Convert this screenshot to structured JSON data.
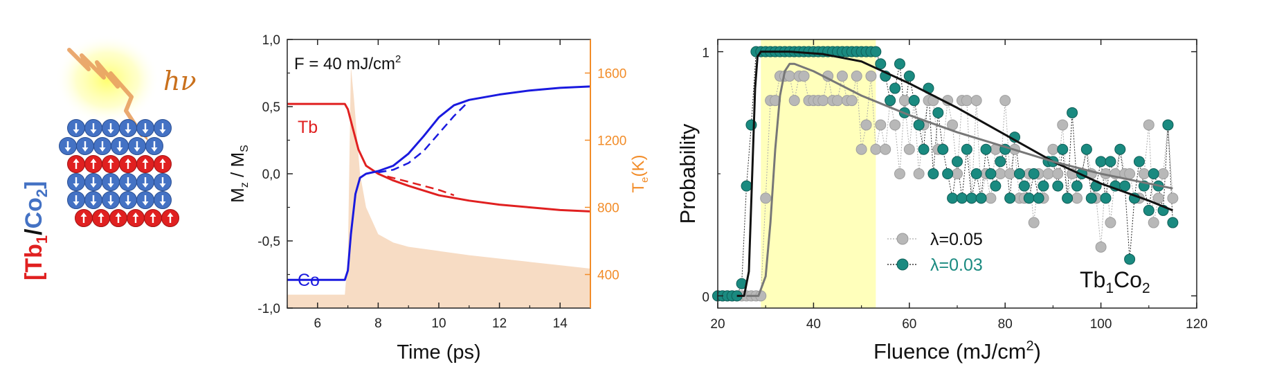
{
  "schematic": {
    "hv_label": "hν",
    "stack_label_tb": "Tb",
    "stack_label_tb_sub": "1",
    "stack_label_sep": "/",
    "stack_label_co": "Co",
    "stack_label_co_sub": "2",
    "open_bracket": "[",
    "close_bracket": "]",
    "layers": [
      {
        "element": "Co",
        "spin": "down",
        "count": 6
      },
      {
        "element": "Co",
        "spin": "down",
        "count": 6
      },
      {
        "element": "Tb",
        "spin": "up",
        "count": 6
      },
      {
        "element": "Co",
        "spin": "down",
        "count": 6
      },
      {
        "element": "Co",
        "spin": "down",
        "count": 6
      },
      {
        "element": "Tb",
        "spin": "up",
        "count": 6
      }
    ],
    "colors": {
      "co": "#4472c4",
      "tb": "#e02020",
      "arrow_beam": "#e8a060",
      "glow": "#ffff99"
    }
  },
  "chart_data": [
    {
      "type": "line",
      "annotation_main": "F = 40 mJ/cm",
      "annotation_sup": "2",
      "xlabel": "Time (ps)",
      "ylabel_main": "M",
      "ylabel_sub1": "z",
      "ylabel_mid": " / M",
      "ylabel_sub2": "S",
      "y2label_main": "T",
      "y2label_sub": "e",
      "y2label_end": "(K)",
      "xlim": [
        5,
        15
      ],
      "ylim": [
        -1.0,
        1.0
      ],
      "y2lim": [
        200,
        1800
      ],
      "xticks": [
        "6",
        "8",
        "10",
        "12",
        "14"
      ],
      "yticks": [
        "1,0",
        "0,5",
        "0,0",
        "-0,5",
        "-1,0"
      ],
      "y2ticks": [
        "400",
        "800",
        "1200",
        "1600"
      ],
      "series": [
        {
          "name": "Tb",
          "color": "#e02020",
          "style": "solid",
          "x": [
            5.0,
            6.9,
            7.0,
            7.15,
            7.35,
            7.6,
            8.0,
            8.5,
            9.0,
            10.0,
            11.0,
            12.0,
            13.0,
            14.0,
            15.0
          ],
          "y": [
            0.52,
            0.52,
            0.48,
            0.35,
            0.18,
            0.06,
            0.0,
            -0.05,
            -0.09,
            -0.16,
            -0.2,
            -0.23,
            -0.25,
            -0.27,
            -0.28
          ]
        },
        {
          "name": "",
          "color": "#e02020",
          "style": "dashed",
          "x": [
            8.3,
            9.0,
            9.5,
            10.0,
            10.5
          ],
          "y": [
            -0.02,
            -0.06,
            -0.09,
            -0.12,
            -0.16
          ]
        },
        {
          "name": "Co",
          "color": "#1a1adf",
          "style": "solid",
          "x": [
            5.0,
            6.9,
            7.0,
            7.1,
            7.25,
            7.4,
            7.6,
            8.0,
            8.5,
            9.0,
            9.5,
            10.0,
            10.5,
            11.0,
            12.0,
            13.0,
            14.0,
            15.0
          ],
          "y": [
            -0.79,
            -0.79,
            -0.72,
            -0.45,
            -0.15,
            -0.03,
            0.0,
            0.02,
            0.06,
            0.15,
            0.28,
            0.42,
            0.51,
            0.55,
            0.59,
            0.62,
            0.64,
            0.65
          ]
        },
        {
          "name": "",
          "color": "#1a1adf",
          "style": "dashed",
          "x": [
            8.0,
            8.5,
            9.0,
            9.5,
            10.0,
            10.5,
            10.9
          ],
          "y": [
            0.01,
            0.03,
            0.08,
            0.17,
            0.3,
            0.43,
            0.52
          ]
        },
        {
          "name": "",
          "color": "#f7dcc4",
          "style": "fill",
          "axis": "y2",
          "x": [
            5.0,
            6.9,
            7.0,
            7.1,
            7.2,
            7.4,
            7.6,
            8.0,
            8.5,
            9.0,
            10.0,
            11.0,
            12.0,
            13.0,
            14.0,
            15.0
          ],
          "y": [
            280,
            280,
            500,
            1640,
            1450,
            1000,
            800,
            640,
            590,
            565,
            540,
            515,
            495,
            475,
            455,
            435
          ]
        }
      ],
      "labels": [
        "Tb",
        "Co"
      ]
    },
    {
      "type": "scatter",
      "xlabel_main": "Fluence (mJ/cm",
      "xlabel_sup": "2",
      "xlabel_end": ")",
      "ylabel": "Probability",
      "xlim": [
        20,
        120
      ],
      "ylim": [
        -0.05,
        1.05
      ],
      "xticks": [
        "20",
        "40",
        "60",
        "80",
        "100",
        "120"
      ],
      "yticks": [
        "0",
        "1"
      ],
      "highlight_band": {
        "x": [
          29,
          53
        ],
        "color": "#ffffaa"
      },
      "label": "Tb",
      "label_sub": "1",
      "label_mid": "Co",
      "label_sub2": "2",
      "series": [
        {
          "name": "λ=0.05",
          "color": "#b8b8b8",
          "marker": "circle",
          "x": [
            20,
            21,
            22,
            23,
            24,
            25,
            26,
            27,
            28,
            29,
            30,
            31,
            32,
            33,
            34,
            35,
            36,
            37,
            38,
            39,
            40,
            41,
            42,
            43,
            44,
            45,
            46,
            47,
            48,
            49,
            50,
            51,
            52,
            53,
            54,
            55,
            56,
            57,
            58,
            59,
            60,
            61,
            62,
            63,
            64,
            65,
            66,
            67,
            68,
            69,
            70,
            71,
            72,
            73,
            74,
            75,
            76,
            77,
            78,
            79,
            80,
            81,
            82,
            83,
            84,
            85,
            86,
            87,
            88,
            89,
            90,
            91,
            92,
            93,
            94,
            95,
            96,
            97,
            98,
            99,
            100,
            101,
            102,
            103,
            104,
            105,
            106,
            107,
            108,
            109,
            110,
            111,
            112,
            113,
            114,
            115
          ],
          "y": [
            0,
            0,
            0,
            0,
            0,
            0,
            0,
            0,
            0,
            0,
            0.4,
            0.8,
            0.8,
            0.9,
            0.9,
            0.9,
            0.8,
            0.9,
            0.9,
            0.8,
            0.8,
            0.8,
            0.8,
            0.9,
            0.8,
            0.8,
            0.9,
            0.8,
            0.8,
            0.9,
            0.6,
            0.7,
            0.9,
            0.6,
            0.7,
            0.6,
            0.8,
            0.7,
            0.5,
            0.8,
            0.6,
            0.8,
            0.5,
            0.7,
            0.8,
            0.8,
            0.6,
            0.6,
            0.8,
            0.7,
            0.5,
            0.8,
            0.8,
            0.4,
            0.8,
            0.4,
            0.5,
            0.4,
            0.6,
            0.5,
            0.8,
            0.5,
            0.6,
            0.4,
            0.4,
            0.5,
            0.3,
            0.5,
            0.4,
            0.5,
            0.6,
            0.5,
            0.7,
            0.4,
            0.5,
            0.4,
            0.5,
            0.6,
            0.5,
            0.4,
            0.2,
            0.5,
            0.3,
            0.5,
            0.6,
            0.5,
            0.5,
            0.4,
            0.4,
            0.5,
            0.7,
            0.3,
            0.4,
            0.5,
            0.7,
            0.4
          ]
        },
        {
          "name": "λ=0.03",
          "color": "#1a8a80",
          "marker": "circle",
          "x": [
            20,
            21,
            22,
            23,
            24,
            25,
            26,
            27,
            28,
            29,
            30,
            31,
            32,
            33,
            34,
            35,
            36,
            37,
            38,
            39,
            40,
            41,
            42,
            43,
            44,
            45,
            46,
            47,
            48,
            49,
            50,
            51,
            52,
            53,
            54,
            55,
            56,
            57,
            58,
            59,
            60,
            61,
            62,
            63,
            64,
            65,
            66,
            67,
            68,
            69,
            70,
            71,
            72,
            73,
            74,
            75,
            76,
            77,
            78,
            79,
            80,
            81,
            82,
            83,
            84,
            85,
            86,
            87,
            88,
            89,
            90,
            91,
            92,
            93,
            94,
            95,
            96,
            97,
            98,
            99,
            100,
            101,
            102,
            103,
            104,
            105,
            106,
            107,
            108,
            109,
            110,
            111,
            112,
            113,
            114,
            115
          ],
          "y": [
            0,
            0,
            0,
            0,
            0,
            0.05,
            0.45,
            0.7,
            1.0,
            1.0,
            1.0,
            1.0,
            1.0,
            1.0,
            1.0,
            1.0,
            1.0,
            1.0,
            1.0,
            1.0,
            1.0,
            1.0,
            1.0,
            1.0,
            1.0,
            1.0,
            1.0,
            1.0,
            1.0,
            1.0,
            1.0,
            1.0,
            1.0,
            1.0,
            0.95,
            0.9,
            0.8,
            0.85,
            0.95,
            0.75,
            0.9,
            0.8,
            0.7,
            0.6,
            0.85,
            0.5,
            0.75,
            0.6,
            0.5,
            0.4,
            0.55,
            0.4,
            0.6,
            0.4,
            0.5,
            0.4,
            0.6,
            0.5,
            0.45,
            0.55,
            0.6,
            0.4,
            0.65,
            0.5,
            0.45,
            0.4,
            0.5,
            0.4,
            0.45,
            0.55,
            0.55,
            0.45,
            0.6,
            0.4,
            0.75,
            0.45,
            0.5,
            0.6,
            0.4,
            0.45,
            0.55,
            0.4,
            0.55,
            0.45,
            0.6,
            0.45,
            0.15,
            0.4,
            0.55,
            0.45,
            0.35,
            0.5,
            0.45,
            0.35,
            0.7,
            0.3
          ]
        },
        {
          "name": "",
          "color": "#111111",
          "style": "solid",
          "x": [
            24,
            25.5,
            26.5,
            27.2,
            27.8,
            28.3,
            29,
            35,
            42,
            50,
            60,
            70,
            80,
            90,
            100,
            110,
            115
          ],
          "y": [
            0,
            0,
            0.1,
            0.5,
            0.85,
            0.98,
            1.0,
            1.0,
            0.99,
            0.96,
            0.87,
            0.77,
            0.66,
            0.55,
            0.46,
            0.39,
            0.35
          ]
        },
        {
          "name": "",
          "color": "#777777",
          "style": "solid",
          "x": [
            26,
            28.5,
            30,
            31,
            32,
            33,
            34,
            35,
            36,
            40,
            50,
            60,
            70,
            80,
            90,
            100,
            110,
            115
          ],
          "y": [
            0,
            0,
            0.08,
            0.3,
            0.6,
            0.82,
            0.92,
            0.95,
            0.95,
            0.92,
            0.82,
            0.74,
            0.67,
            0.61,
            0.55,
            0.5,
            0.46,
            0.44
          ]
        }
      ]
    }
  ]
}
